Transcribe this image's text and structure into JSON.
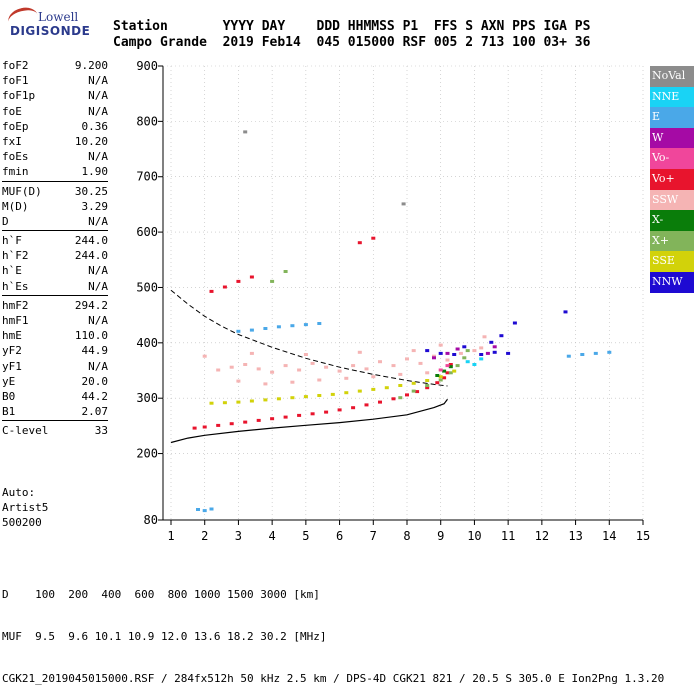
{
  "logo": {
    "line1": "Lowell",
    "line2": "DIGISONDE"
  },
  "header": {
    "labels": "Station       YYYY DAY    DDD HHMMSS P1  FFS S AXN PPS IGA PS",
    "values": "Campo Grande  2019 Feb14  045 015000 RSF 005 2 713 100 03+ 36"
  },
  "params": [
    {
      "label": "foF2",
      "value": "9.200"
    },
    {
      "label": "foF1",
      "value": "N/A"
    },
    {
      "label": "foF1p",
      "value": "N/A"
    },
    {
      "label": "foE",
      "value": "N/A"
    },
    {
      "label": "foEp",
      "value": "0.36"
    },
    {
      "label": "fxI",
      "value": "10.20"
    },
    {
      "label": "foEs",
      "value": "N/A"
    },
    {
      "label": "fmin",
      "value": "1.90"
    },
    {
      "label": "MUF(D)",
      "value": "30.25"
    },
    {
      "label": "M(D)",
      "value": "3.29"
    },
    {
      "label": "D",
      "value": "N/A"
    },
    {
      "label": "h`F",
      "value": "244.0"
    },
    {
      "label": "h`F2",
      "value": "244.0"
    },
    {
      "label": "h`E",
      "value": "N/A"
    },
    {
      "label": "h`Es",
      "value": "N/A"
    },
    {
      "label": "hmF2",
      "value": "294.2"
    },
    {
      "label": "hmF1",
      "value": "N/A"
    },
    {
      "label": "hmE",
      "value": "110.0"
    },
    {
      "label": "yF2",
      "value": "44.9"
    },
    {
      "label": "yF1",
      "value": "N/A"
    },
    {
      "label": "yE",
      "value": "20.0"
    },
    {
      "label": "B0",
      "value": "44.2"
    },
    {
      "label": "B1",
      "value": "2.07"
    },
    {
      "label": "C-level",
      "value": "33"
    }
  ],
  "auto": {
    "line1": "Auto:",
    "line2": "Artist5",
    "line3": "500200"
  },
  "legend": [
    {
      "label": "NoVal",
      "color": "#8c8c8c"
    },
    {
      "label": "NNE",
      "color": "#19d3f5"
    },
    {
      "label": "E",
      "color": "#4aa8e8"
    },
    {
      "label": "W",
      "color": "#a50aa5"
    },
    {
      "label": "Vo-",
      "color": "#f0469b"
    },
    {
      "label": "Vo+",
      "color": "#e8142d"
    },
    {
      "label": "SSW",
      "color": "#f5b4b4"
    },
    {
      "label": "X-",
      "color": "#0a7d0a"
    },
    {
      "label": "X+",
      "color": "#82b45a"
    },
    {
      "label": "SSE",
      "color": "#d2d20a"
    },
    {
      "label": "NNW",
      "color": "#1e0ad2"
    }
  ],
  "footer": {
    "line1": "D    100  200  400  600  800 1000 1500 3000 [km]",
    "line2": "MUF  9.5  9.6 10.1 10.9 12.0 13.6 18.2 30.2 [MHz]",
    "line3": "CGK21_2019045015000.RSF / 284fx512h 50 kHz 2.5 km / DPS-4D CGK21 821 / 20.5 S 305.0 E Ion2Png 1.3.20"
  },
  "chart_data": {
    "type": "scatter",
    "xlim": [
      1,
      15
    ],
    "ylim": [
      80,
      900
    ],
    "x_ticks": [
      1,
      2,
      3,
      4,
      5,
      6,
      7,
      8,
      9,
      10,
      11,
      12,
      13,
      14,
      15
    ],
    "y_ticks": [
      80,
      200,
      300,
      400,
      500,
      600,
      700,
      800,
      900
    ],
    "series": [
      {
        "name": "Vo+",
        "color": "#e8142d",
        "points": [
          [
            1.7,
            245
          ],
          [
            2.0,
            247
          ],
          [
            2.4,
            250
          ],
          [
            2.8,
            253
          ],
          [
            3.2,
            256
          ],
          [
            3.6,
            259
          ],
          [
            4.0,
            262
          ],
          [
            4.4,
            265
          ],
          [
            4.8,
            268
          ],
          [
            5.2,
            271
          ],
          [
            5.6,
            274
          ],
          [
            6.0,
            278
          ],
          [
            6.4,
            282
          ],
          [
            6.8,
            287
          ],
          [
            7.2,
            292
          ],
          [
            7.6,
            298
          ],
          [
            8.0,
            305
          ],
          [
            8.3,
            311
          ],
          [
            8.6,
            318
          ],
          [
            8.9,
            327
          ],
          [
            9.1,
            336
          ],
          [
            9.2,
            345
          ],
          [
            9.3,
            360
          ],
          [
            2.2,
            492
          ],
          [
            2.6,
            500
          ],
          [
            3.0,
            510
          ],
          [
            3.4,
            518
          ],
          [
            6.6,
            580
          ],
          [
            7.0,
            588
          ]
        ]
      },
      {
        "name": "X+",
        "color": "#82b45a",
        "points": [
          [
            4.0,
            510
          ],
          [
            4.4,
            528
          ],
          [
            7.8,
            300
          ],
          [
            8.2,
            312
          ],
          [
            8.6,
            322
          ],
          [
            9.0,
            332
          ],
          [
            9.3,
            345
          ],
          [
            9.5,
            358
          ],
          [
            9.7,
            372
          ],
          [
            9.8,
            385
          ]
        ]
      },
      {
        "name": "SSE",
        "color": "#d2d20a",
        "points": [
          [
            2.2,
            290
          ],
          [
            2.6,
            291
          ],
          [
            3.0,
            292
          ],
          [
            3.4,
            294
          ],
          [
            3.8,
            296
          ],
          [
            4.2,
            298
          ],
          [
            4.6,
            300
          ],
          [
            5.0,
            302
          ],
          [
            5.4,
            304
          ],
          [
            5.8,
            306
          ],
          [
            6.2,
            309
          ],
          [
            6.6,
            312
          ],
          [
            7.0,
            315
          ],
          [
            7.4,
            318
          ],
          [
            7.8,
            322
          ],
          [
            8.2,
            326
          ],
          [
            8.6,
            331
          ],
          [
            9.0,
            338
          ],
          [
            9.4,
            348
          ]
        ]
      },
      {
        "name": "SSW",
        "color": "#f5b4b4",
        "points": [
          [
            2.4,
            350
          ],
          [
            2.8,
            355
          ],
          [
            3.2,
            360
          ],
          [
            3.6,
            352
          ],
          [
            4.0,
            346
          ],
          [
            4.4,
            358
          ],
          [
            4.8,
            350
          ],
          [
            5.2,
            362
          ],
          [
            5.6,
            355
          ],
          [
            6.0,
            348
          ],
          [
            6.4,
            358
          ],
          [
            6.8,
            352
          ],
          [
            7.2,
            365
          ],
          [
            7.6,
            358
          ],
          [
            8.0,
            370
          ],
          [
            8.4,
            362
          ],
          [
            8.8,
            375
          ],
          [
            9.2,
            368
          ],
          [
            9.6,
            380
          ],
          [
            10.0,
            385
          ],
          [
            10.2,
            390
          ],
          [
            3.0,
            330
          ],
          [
            3.8,
            325
          ],
          [
            4.6,
            328
          ],
          [
            5.4,
            332
          ],
          [
            6.2,
            335
          ],
          [
            7.0,
            338
          ],
          [
            7.8,
            342
          ],
          [
            8.6,
            345
          ],
          [
            2.0,
            375
          ],
          [
            3.4,
            380
          ],
          [
            5.0,
            378
          ],
          [
            6.6,
            382
          ],
          [
            8.2,
            385
          ],
          [
            9.0,
            395
          ],
          [
            10.3,
            410
          ]
        ]
      },
      {
        "name": "E",
        "color": "#4aa8e8",
        "points": [
          [
            3.0,
            420
          ],
          [
            3.4,
            422
          ],
          [
            3.8,
            425
          ],
          [
            4.2,
            428
          ],
          [
            4.6,
            430
          ],
          [
            5.0,
            432
          ],
          [
            5.4,
            434
          ],
          [
            12.8,
            375
          ],
          [
            13.2,
            378
          ],
          [
            13.6,
            380
          ],
          [
            14.0,
            382
          ],
          [
            1.8,
            98
          ],
          [
            2.0,
            96
          ],
          [
            2.2,
            99
          ]
        ]
      },
      {
        "name": "NNW",
        "color": "#1e0ad2",
        "points": [
          [
            8.6,
            385
          ],
          [
            9.0,
            380
          ],
          [
            9.4,
            378
          ],
          [
            10.2,
            378
          ],
          [
            10.6,
            382
          ],
          [
            11.0,
            380
          ],
          [
            10.5,
            400
          ],
          [
            10.8,
            412
          ],
          [
            11.2,
            435
          ],
          [
            12.7,
            455
          ],
          [
            9.7,
            392
          ]
        ]
      },
      {
        "name": "W",
        "color": "#a50aa5",
        "points": [
          [
            8.8,
            372
          ],
          [
            9.2,
            380
          ],
          [
            9.5,
            388
          ],
          [
            10.4,
            380
          ],
          [
            10.6,
            392
          ]
        ]
      },
      {
        "name": "NNE",
        "color": "#19d3f5",
        "points": [
          [
            9.8,
            365
          ],
          [
            10.0,
            360
          ],
          [
            10.2,
            370
          ]
        ]
      },
      {
        "name": "X-",
        "color": "#0a7d0a",
        "points": [
          [
            8.9,
            340
          ],
          [
            9.1,
            348
          ],
          [
            9.3,
            356
          ]
        ]
      },
      {
        "name": "Vo-",
        "color": "#f0469b",
        "points": [
          [
            9.0,
            350
          ],
          [
            9.2,
            358
          ]
        ]
      },
      {
        "name": "NoVal",
        "color": "#8c8c8c",
        "points": [
          [
            3.2,
            780
          ],
          [
            7.9,
            650
          ]
        ]
      }
    ],
    "profile_solid": [
      [
        1,
        220
      ],
      [
        1.5,
        228
      ],
      [
        2,
        233
      ],
      [
        3,
        240
      ],
      [
        4,
        246
      ],
      [
        5,
        251
      ],
      [
        6,
        256
      ],
      [
        7,
        262
      ],
      [
        8,
        270
      ],
      [
        8.8,
        283
      ],
      [
        9.1,
        290
      ],
      [
        9.2,
        298
      ]
    ],
    "profile_dashed": [
      [
        1,
        495
      ],
      [
        1.5,
        470
      ],
      [
        2,
        448
      ],
      [
        2.5,
        430
      ],
      [
        3,
        415
      ],
      [
        4,
        392
      ],
      [
        5,
        372
      ],
      [
        6,
        356
      ],
      [
        7,
        343
      ],
      [
        8,
        332
      ],
      [
        8.8,
        325
      ],
      [
        9.2,
        322
      ]
    ]
  }
}
